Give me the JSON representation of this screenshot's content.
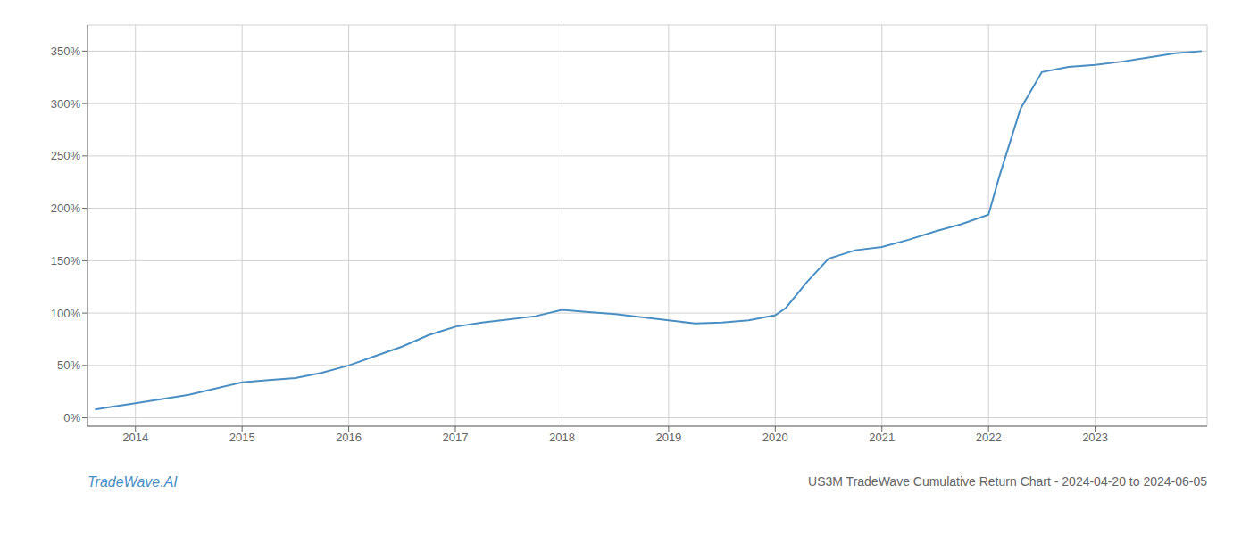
{
  "chart_data": {
    "type": "line",
    "title": "US3M TradeWave Cumulative Return Chart - 2024-04-20 to 2024-06-05",
    "annotations": [
      "TradeWave.AI"
    ],
    "x": [
      2013.62,
      2013.75,
      2014.0,
      2014.25,
      2014.5,
      2014.75,
      2015.0,
      2015.25,
      2015.5,
      2015.75,
      2016.0,
      2016.25,
      2016.5,
      2016.75,
      2017.0,
      2017.25,
      2017.5,
      2017.75,
      2018.0,
      2018.25,
      2018.5,
      2018.75,
      2019.0,
      2019.25,
      2019.5,
      2019.75,
      2020.0,
      2020.1,
      2020.3,
      2020.5,
      2020.75,
      2021.0,
      2021.25,
      2021.5,
      2021.75,
      2022.0,
      2022.1,
      2022.3,
      2022.5,
      2022.75,
      2023.0,
      2023.25,
      2023.5,
      2023.75,
      2024.0
    ],
    "values": [
      8.0,
      10.0,
      14.0,
      18.0,
      22.0,
      28.0,
      34.0,
      36.0,
      38.0,
      43.0,
      50.0,
      59.0,
      68.0,
      79.0,
      87.0,
      91.0,
      94.0,
      97.0,
      103.0,
      101.0,
      99.0,
      96.0,
      93.0,
      90.0,
      91.0,
      93.0,
      98.0,
      105.0,
      130.0,
      152.0,
      160.0,
      163.0,
      170.0,
      178.0,
      185.0,
      194.0,
      230.0,
      295.0,
      330.0,
      335.0,
      337.0,
      340.0,
      344.0,
      348.0,
      350.0
    ],
    "color": "#4a8fc4",
    "xlim": [
      2013.55,
      2024.05
    ],
    "ylim": [
      -8,
      375
    ],
    "xticks": [
      2014,
      2015,
      2016,
      2017,
      2018,
      2019,
      2020,
      2021,
      2022,
      2023
    ],
    "yticks": [
      {
        "value": 0,
        "label": "0%"
      },
      {
        "value": 50,
        "label": "50%"
      },
      {
        "value": 100,
        "label": "100%"
      },
      {
        "value": 150,
        "label": "150%"
      },
      {
        "value": 200,
        "label": "200%"
      },
      {
        "value": 250,
        "label": "250%"
      },
      {
        "value": 300,
        "label": "300%"
      },
      {
        "value": 350,
        "label": "350%"
      }
    ],
    "grid": true
  }
}
